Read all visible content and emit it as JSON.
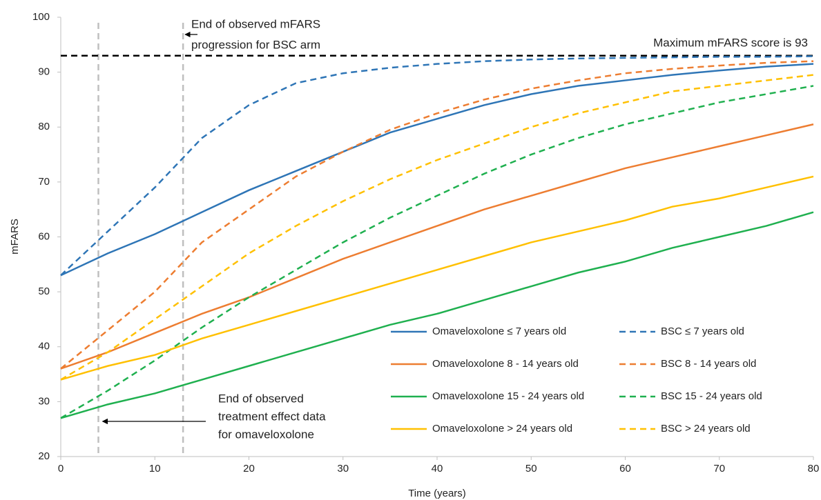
{
  "chart_data": {
    "type": "line",
    "x_label": "Time (years)",
    "y_label": "mFARS",
    "xlim": [
      0,
      80
    ],
    "ylim": [
      20,
      100
    ],
    "xticks": [
      0,
      10,
      20,
      30,
      40,
      50,
      60,
      70,
      80
    ],
    "yticks": [
      20,
      30,
      40,
      50,
      60,
      70,
      80,
      90,
      100
    ],
    "x": [
      0,
      5,
      10,
      15,
      20,
      25,
      30,
      35,
      40,
      45,
      50,
      55,
      60,
      65,
      70,
      75,
      80
    ],
    "series": [
      {
        "name": "Omaveloxolone ≤ 7 years old",
        "color": "#2e75b6",
        "style": "solid",
        "values": [
          53,
          57,
          60.5,
          64.5,
          68.5,
          72,
          75.5,
          79,
          81.5,
          84,
          86,
          87.5,
          88.5,
          89.5,
          90.3,
          91,
          91.5
        ]
      },
      {
        "name": "BSC ≤ 7 years old",
        "color": "#2e75b6",
        "style": "dashed",
        "values": [
          53,
          61,
          69,
          78,
          84,
          88,
          89.8,
          90.8,
          91.5,
          92,
          92.3,
          92.5,
          92.6,
          92.7,
          92.8,
          92.8,
          92.9
        ]
      },
      {
        "name": "Omaveloxolone 8 - 14 years old",
        "color": "#ed7d31",
        "style": "solid",
        "values": [
          36,
          39,
          42.5,
          46,
          49,
          52.5,
          56,
          59,
          62,
          65,
          67.5,
          70,
          72.5,
          74.5,
          76.5,
          78.5,
          80.5
        ]
      },
      {
        "name": "BSC 8 - 14 years old",
        "color": "#ed7d31",
        "style": "dashed",
        "values": [
          36,
          43,
          50,
          59,
          65,
          71,
          75.5,
          79.5,
          82.5,
          85,
          87,
          88.5,
          89.8,
          90.6,
          91.2,
          91.7,
          92
        ]
      },
      {
        "name": "Omaveloxolone 15 - 24 years old",
        "color": "#1fb04f",
        "style": "solid",
        "values": [
          27,
          29.5,
          31.5,
          34,
          36.5,
          39,
          41.5,
          44,
          46,
          48.5,
          51,
          53.5,
          55.5,
          58,
          60,
          62,
          64.5
        ]
      },
      {
        "name": "BSC 15 - 24 years old",
        "color": "#1fb04f",
        "style": "dashed",
        "values": [
          27,
          32,
          37.5,
          43.5,
          49,
          54,
          59,
          63.5,
          67.5,
          71.5,
          75,
          78,
          80.5,
          82.5,
          84.5,
          86,
          87.5
        ]
      },
      {
        "name": "Omaveloxolone > 24 years old",
        "color": "#ffc000",
        "style": "solid",
        "values": [
          34,
          36.5,
          38.5,
          41.5,
          44,
          46.5,
          49,
          51.5,
          54,
          56.5,
          59,
          61,
          63,
          65.5,
          67,
          69,
          71
        ]
      },
      {
        "name": "BSC > 24 years old",
        "color": "#ffc000",
        "style": "dashed",
        "values": [
          34,
          39,
          45,
          51,
          57,
          62,
          66.5,
          70.5,
          74,
          77,
          80,
          82.5,
          84.5,
          86.5,
          87.5,
          88.5,
          89.5
        ]
      }
    ],
    "vlines": [
      4,
      13
    ],
    "hline": 93,
    "annotations": [
      {
        "lines": [
          "End of observed mFARS",
          "progression for BSC arm"
        ]
      },
      {
        "lines": [
          "Maximum mFARS score is 93"
        ]
      },
      {
        "lines": [
          "End of observed",
          "treatment effect data",
          "for omaveloxolone"
        ]
      }
    ]
  }
}
